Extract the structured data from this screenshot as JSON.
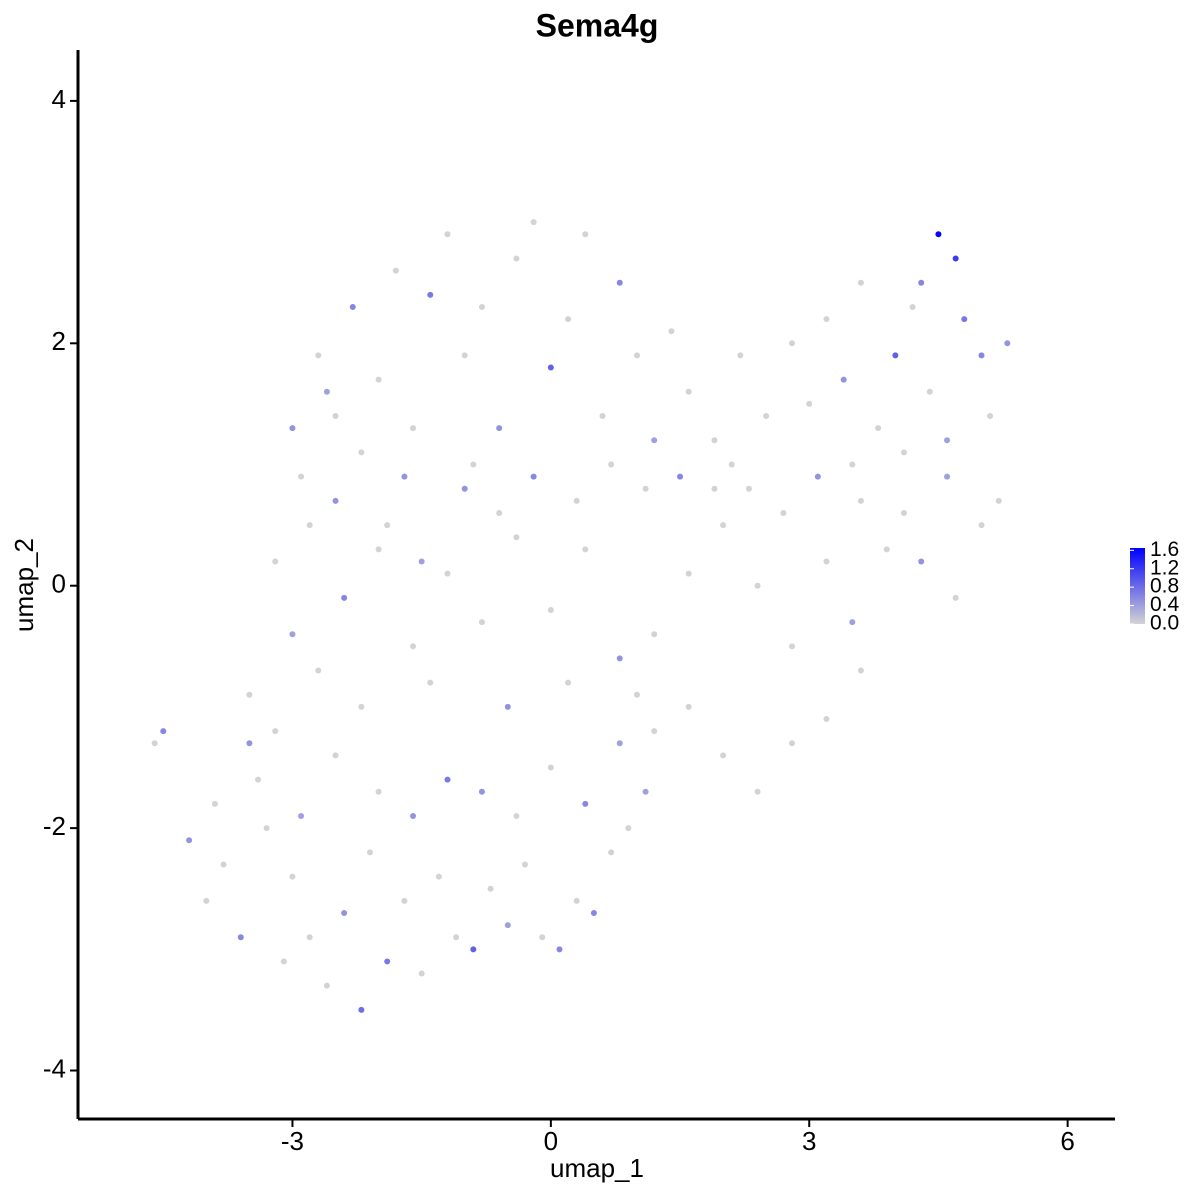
{
  "chart_data": {
    "type": "scatter",
    "title": "Sema4g",
    "x_label": "umap_1",
    "y_label": "umap_2",
    "xlim": [
      -5.49,
      6.55
    ],
    "ylim": [
      -4.4,
      4.42
    ],
    "xticks": [
      -3,
      0,
      3,
      6
    ],
    "yticks": [
      -4,
      -2,
      0,
      2,
      4
    ],
    "grid": false,
    "low_color": "#d3d3d3",
    "high_color": "#0000ff",
    "colorlim": [
      0,
      1.65
    ],
    "colorticks": [
      {
        "value": 0,
        "label": "0.0"
      },
      0.4,
      0.8,
      1.2,
      1.6
    ],
    "x": [
      -4.6,
      -4.5,
      -4.2,
      -4.0,
      -3.8,
      -3.6,
      -3.5,
      -3.3,
      -3.1,
      -3.0,
      -2.8,
      -2.6,
      -2.4,
      -2.2,
      -2.1,
      -1.9,
      -1.7,
      -1.5,
      -1.3,
      -1.1,
      -0.9,
      -0.7,
      -0.5,
      -0.3,
      -0.1,
      0.1,
      0.3,
      0.5,
      0.7,
      0.9,
      1.1,
      -3.9,
      -3.4,
      -2.9,
      -2.5,
      -2.0,
      -1.6,
      -1.2,
      -0.8,
      -0.4,
      0.0,
      0.4,
      0.8,
      1.2,
      1.6,
      2.0,
      2.4,
      2.8,
      3.2,
      3.6,
      -3.5,
      -3.0,
      -2.7,
      -3.2,
      -2.8,
      -2.4,
      -2.0,
      -1.6,
      -1.2,
      -0.8,
      -0.4,
      0.0,
      0.4,
      0.8,
      1.2,
      1.6,
      2.0,
      2.4,
      2.8,
      3.2,
      3.5,
      3.9,
      4.3,
      4.7,
      5.0,
      -1.0,
      -0.6,
      -0.2,
      0.3,
      0.7,
      1.1,
      1.5,
      1.9,
      2.3,
      2.7,
      3.1,
      3.6,
      4.1,
      4.6,
      5.2,
      -2.9,
      -2.5,
      -1.9,
      -1.5,
      -3.2,
      -2.2,
      -1.4,
      -0.5,
      0.2,
      1.0,
      -3.0,
      -2.7,
      -2.5,
      -2.3,
      -2.0,
      -1.8,
      -1.6,
      -1.4,
      -1.2,
      -1.0,
      -0.8,
      -0.6,
      -0.4,
      -0.2,
      0.0,
      0.2,
      0.4,
      0.6,
      0.8,
      1.0,
      1.2,
      1.4,
      1.6,
      1.9,
      2.2,
      2.5,
      2.8,
      3.0,
      3.2,
      3.4,
      3.6,
      3.8,
      4.0,
      4.2,
      4.4,
      4.5,
      4.7,
      4.8,
      5.0,
      5.1,
      5.3,
      4.3,
      4.6,
      4.1,
      3.5,
      2.1,
      -0.9,
      -1.7,
      -2.2,
      -2.6
    ],
    "values": [
      -1.3,
      -1.2,
      -2.1,
      -2.6,
      -2.3,
      -2.9,
      -1.3,
      -2.0,
      -3.1,
      -2.4,
      -2.9,
      -3.3,
      -2.7,
      -3.5,
      -2.2,
      -3.1,
      -2.6,
      -3.2,
      -2.4,
      -2.9,
      -3.0,
      -2.5,
      -2.8,
      -2.3,
      -2.9,
      -3.0,
      -2.6,
      -2.7,
      -2.2,
      -2.0,
      -1.7,
      -1.8,
      -1.6,
      -1.9,
      -1.4,
      -1.7,
      -1.9,
      -1.6,
      -1.7,
      -1.9,
      -1.5,
      -1.8,
      -1.3,
      -1.2,
      -1.0,
      -1.4,
      -1.7,
      -1.3,
      -1.1,
      -0.7,
      -0.9,
      -0.4,
      -0.7,
      0.2,
      0.5,
      -0.1,
      0.3,
      -0.5,
      0.1,
      -0.3,
      0.4,
      -0.2,
      0.3,
      -0.6,
      -0.4,
      0.1,
      0.5,
      0.0,
      -0.5,
      0.2,
      -0.3,
      0.3,
      0.2,
      -0.1,
      0.5,
      0.8,
      0.6,
      0.9,
      0.7,
      1.0,
      0.8,
      0.9,
      0.8,
      0.8,
      0.6,
      0.9,
      0.7,
      0.6,
      0.9,
      0.7,
      0.9,
      0.7,
      0.5,
      0.2,
      -1.2,
      -1.0,
      -0.8,
      -1.0,
      -0.8,
      -0.9,
      1.3,
      1.9,
      1.4,
      2.3,
      1.7,
      2.6,
      1.3,
      2.4,
      2.9,
      1.9,
      2.3,
      1.3,
      2.7,
      3.0,
      1.8,
      2.2,
      2.9,
      1.4,
      2.5,
      1.9,
      1.2,
      2.1,
      1.6,
      1.2,
      1.9,
      1.4,
      2.0,
      1.5,
      2.2,
      1.7,
      2.5,
      1.3,
      1.9,
      2.3,
      1.6,
      2.9,
      2.7,
      2.2,
      1.9,
      1.4,
      2.0,
      2.5,
      1.2,
      1.1,
      1.0,
      1.0,
      1.0,
      0.9,
      1.1,
      1.6
    ],
    "expression": [
      0,
      0.6,
      0.5,
      0,
      0,
      0.6,
      0.5,
      0,
      0,
      0,
      0,
      0,
      0.5,
      0.8,
      0,
      0.7,
      0,
      0,
      0,
      0,
      0.9,
      0,
      0.4,
      0,
      0,
      0.6,
      0,
      0.6,
      0,
      0,
      0.4,
      0,
      0,
      0.4,
      0,
      0,
      0.5,
      0.7,
      0.5,
      0,
      0,
      0.6,
      0.4,
      0,
      0,
      0,
      0,
      0,
      0,
      0,
      0,
      0.4,
      0,
      0,
      0,
      0.6,
      0,
      0,
      0,
      0,
      0,
      0,
      0,
      0.5,
      0,
      0,
      0,
      0,
      0,
      0,
      0.4,
      0,
      0.5,
      0,
      0,
      0.5,
      0,
      0.6,
      0,
      0,
      0,
      0.6,
      0,
      0,
      0,
      0.5,
      0,
      0,
      0.4,
      0,
      0,
      0.5,
      0,
      0.4,
      0,
      0,
      0,
      0.5,
      0,
      0,
      0.5,
      0,
      0,
      0.6,
      0,
      0,
      0,
      0.7,
      0,
      0,
      0,
      0.5,
      0,
      0,
      0.9,
      0,
      0,
      0,
      0.6,
      0,
      0.4,
      0,
      0,
      0,
      0,
      0,
      0,
      0,
      0,
      0.5,
      0,
      0,
      0.9,
      0,
      0,
      1.6,
      1.2,
      0.7,
      0.6,
      0,
      0.5,
      0.6,
      0.4,
      0,
      0,
      0,
      0,
      0.5,
      0,
      0.4
    ]
  }
}
